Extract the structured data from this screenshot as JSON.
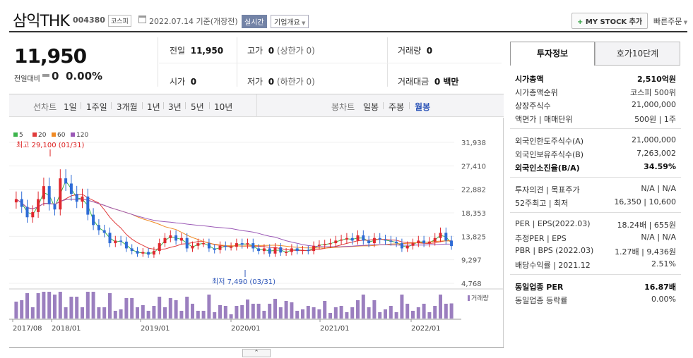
{
  "header": {
    "name": "삼익THK",
    "code": "004380",
    "market": "코스피",
    "date": "2022.07.14 기준(개장전)",
    "realtime": "실시간",
    "company_btn": "기업개요",
    "mystock_btn": "MY STOCK 추가",
    "quick_order": "빠른주문"
  },
  "price": {
    "current": "11,950",
    "change_label": "전일대비",
    "change": "0",
    "change_pct": "0.00%"
  },
  "info": {
    "prev_label": "전일",
    "prev": "11,950",
    "high_label": "고가",
    "high": "0",
    "high_limit": "(상한가 0)",
    "volume_label": "거래량",
    "volume": "0",
    "open_label": "시가",
    "open": "0",
    "low_label": "저가",
    "low": "0",
    "low_limit": "(하한가 0)",
    "amount_label": "거래대금",
    "amount": "0 백만"
  },
  "periods": {
    "label": "선차트",
    "items": [
      "1일",
      "1주일",
      "3개월",
      "1년",
      "3년",
      "5년",
      "10년"
    ],
    "candle_label": "봉차트",
    "candle_items": [
      "일봉",
      "주봉",
      "월봉"
    ],
    "active_candle": "월봉"
  },
  "chart": {
    "legend": [
      {
        "label": "5",
        "color": "#3cb44b"
      },
      {
        "label": "20",
        "color": "#e03c3c"
      },
      {
        "label": "60",
        "color": "#f08a24"
      },
      {
        "label": "120",
        "color": "#9b59b6"
      }
    ],
    "y_ticks": [
      "31,938",
      "27,410",
      "22,882",
      "18,353",
      "13,825",
      "9,297",
      "4,768"
    ],
    "x_ticks": [
      "2017/08",
      "2018/01",
      "2019/01",
      "2020/01",
      "2021/01",
      "2022/01"
    ],
    "max_note": "최고 29,100 (01/31)",
    "min_note": "최저 7,490 (03/31)",
    "volume_label": "거래량",
    "collapse": "⌃"
  },
  "chart_data": {
    "type": "candlestick",
    "ylim": [
      4768,
      31938
    ],
    "series_close": [
      21000,
      19500,
      17500,
      18500,
      21000,
      23500,
      20000,
      19000,
      25000,
      24000,
      22000,
      20500,
      21500,
      18000,
      16000,
      15000,
      14500,
      12500,
      13000,
      12800,
      11500,
      11000,
      10500,
      10800,
      10300,
      11000,
      12500,
      13500,
      14000,
      13000,
      13500,
      11500,
      12000,
      12500,
      12500,
      11500,
      11200,
      12000,
      11800,
      11800,
      12500,
      12200,
      12500,
      11500,
      11000,
      11500,
      10500,
      11700,
      10700,
      10800,
      11500,
      11000,
      11200,
      11000,
      12000,
      12200,
      12300,
      12500,
      13000,
      13200,
      13500,
      13000,
      14000,
      13000,
      12500,
      13500,
      13200,
      13000,
      12800,
      12500,
      11500,
      12000,
      12500,
      13000,
      12500,
      12800,
      13500,
      14500,
      13000,
      11950
    ],
    "extremes": {
      "max": 29100,
      "min": 7490
    }
  },
  "right_panel": {
    "tabs": [
      "투자정보",
      "호가10단계"
    ],
    "rows1": [
      {
        "k": "시가총액",
        "v": "2,510억원",
        "bold": true
      },
      {
        "k": "시가총액순위",
        "v": "코스피 500위"
      },
      {
        "k": "상장주식수",
        "v": "21,000,000"
      },
      {
        "k": "액면가 | 매매단위",
        "v": "500원 | 1주"
      }
    ],
    "rows2": [
      {
        "k": "외국인한도주식수(A)",
        "v": "21,000,000"
      },
      {
        "k": "외국인보유주식수(B)",
        "v": "7,263,002"
      },
      {
        "k": "외국인소진율(B/A)",
        "v": "34.59%",
        "bold": true
      }
    ],
    "rows3": [
      {
        "k": "투자의견 | 목표주가",
        "v": "N/A | N/A"
      },
      {
        "k": "52주최고 | 최저",
        "v": "16,350 | 10,600"
      }
    ],
    "rows4": [
      {
        "k": "PER | EPS(2022.03)",
        "v": "18.24배 | 655원"
      },
      {
        "k": "추정PER | EPS",
        "v": "N/A | N/A"
      },
      {
        "k": "PBR | BPS (2022.03)",
        "v": "1.27배 | 9,436원"
      },
      {
        "k": "배당수익률 | 2021.12",
        "v": "2.51%"
      }
    ],
    "rows5": [
      {
        "k": "동일업종 PER",
        "v": "16.87배",
        "bold": true
      },
      {
        "k": "동일업종 등락률",
        "v": "0.00%"
      }
    ]
  }
}
